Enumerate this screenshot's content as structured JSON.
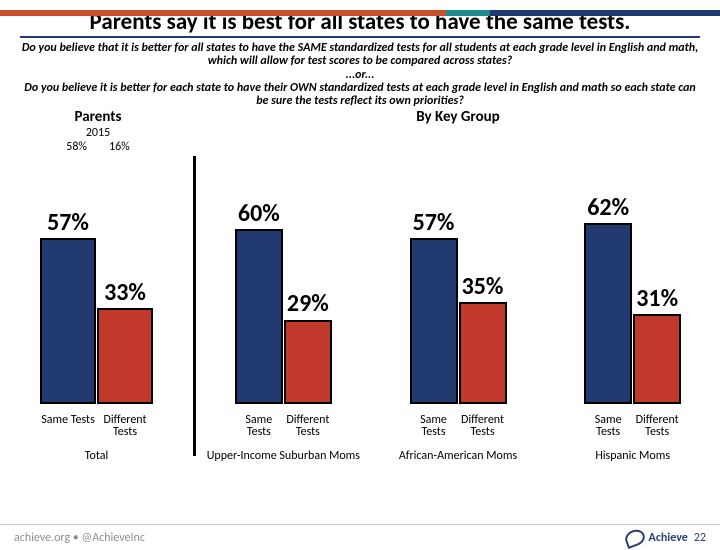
{
  "top_rule_colors": [
    "#c94f2a",
    "#1f8a8a",
    "#1f3a6e"
  ],
  "top_rule_widths": [
    "62%",
    "6%",
    "32%"
  ],
  "headline": "Parents say it is best for all states to have the same tests.",
  "headline_fontsize": 23,
  "subhead": "Do you believe that it is better for all states to have the SAME standardized tests for all students at each grade level in English and math, which will allow for test scores to be compared across states?\n...or...\nDo you believe it is better for each state to have their OWN standardized tests at each grade level in English and math so each state can be sure the tests reflect its own priorities?",
  "subhead_fontsize": 12,
  "section_left": "Parents",
  "section_right": "By Key Group",
  "section_fontsize": 15,
  "year": "2015",
  "year_fontsize": 12,
  "mini_values": {
    "left": "58%",
    "right": "16%"
  },
  "mini_fontsize": 12,
  "colors": {
    "same": "#203a6f",
    "different": "#c0392b",
    "bar_border": "#000000",
    "value_text": "#000000"
  },
  "value_fontsize": 24,
  "axis_fontsize": 12,
  "group_title_fontsize": 12,
  "axis_labels": {
    "same": "Same Tests",
    "different": "Different Tests"
  },
  "parents": {
    "same": 57,
    "different": 33,
    "title": "Total"
  },
  "groups": [
    {
      "same": 60,
      "different": 29,
      "title": "Upper-Income Suburban Moms"
    },
    {
      "same": 57,
      "different": 35,
      "title": "African-American Moms"
    },
    {
      "same": 62,
      "different": 31,
      "title": "Hispanic Moms"
    }
  ],
  "bar_scale_max": 72,
  "footer": {
    "left": "achieve.org • @AchieveInc",
    "brand": "Achieve",
    "page": "22",
    "fontsize": 12
  }
}
